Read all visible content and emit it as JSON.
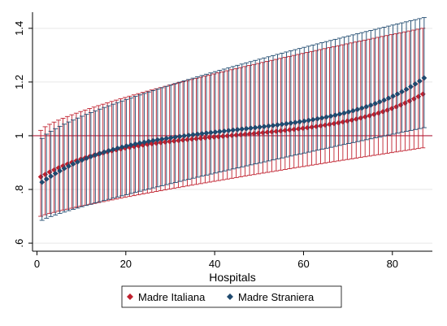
{
  "chart_data": {
    "type": "scatter",
    "subtype": "dot-with-confidence-intervals",
    "xlabel": "Hospitals",
    "ylabel": "",
    "xlim": [
      -1,
      89
    ],
    "ylim": [
      0.57,
      1.46
    ],
    "xticks": [
      0,
      20,
      40,
      60,
      80
    ],
    "yticks": [
      0.6,
      0.8,
      1.0,
      1.2,
      1.4
    ],
    "ytick_labels": [
      ".6",
      ".8",
      "1",
      "1.2",
      "1.4"
    ],
    "reference_line": 1.0,
    "grid": true,
    "legend_position": "bottom",
    "n_hospitals": 87,
    "series": [
      {
        "name": "Madre Italiana",
        "color": "#c0202e",
        "marker": "diamond",
        "start": 0.847,
        "end": 1.155,
        "lower_start": 0.7,
        "lower_end": 0.955,
        "upper_start": 1.02,
        "upper_end": 1.4
      },
      {
        "name": "Madre Straniera",
        "color": "#1f4a6f",
        "marker": "diamond",
        "start": 0.827,
        "end": 1.215,
        "lower_start": 0.685,
        "lower_end": 1.03,
        "upper_start": 0.99,
        "upper_end": 1.44
      }
    ]
  }
}
